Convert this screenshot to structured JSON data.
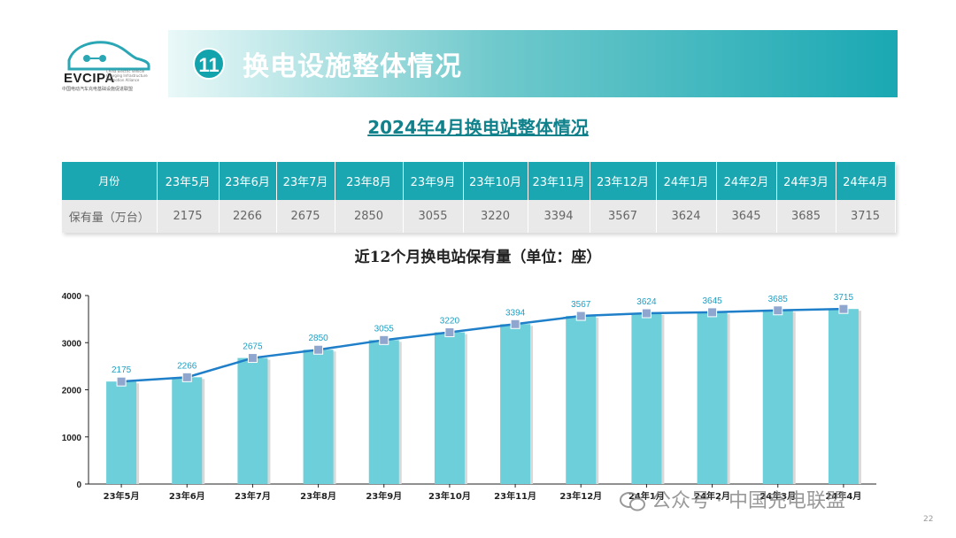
{
  "header": {
    "logo_text": "EVCIPA",
    "logo_subtext": "China Electric Vehicle Charging Infrastructure Promotion Alliance",
    "logo_cn": "中国电动汽车充电基础设施促进联盟",
    "badge_number": "11",
    "title": "换电设施整体情况"
  },
  "subtitle": "2024年4月换电站整体情况",
  "table": {
    "header_label": "月份",
    "row_label": "保有量（万台）",
    "months": [
      "23年5月",
      "23年6月",
      "23年7月",
      "23年8月",
      "23年9月",
      "23年10月",
      "23年11月",
      "23年12月",
      "24年1月",
      "24年2月",
      "24年3月",
      "24年4月"
    ],
    "values": [
      "2175",
      "2266",
      "2675",
      "2850",
      "3055",
      "3220",
      "3394",
      "3567",
      "3624",
      "3645",
      "3685",
      "3715"
    ]
  },
  "chart_title": "近12个月换电站保有量（单位：座）",
  "chart_data": {
    "type": "bar",
    "overlay": "line",
    "categories": [
      "23年5月",
      "23年6月",
      "23年7月",
      "23年8月",
      "23年9月",
      "23年10月",
      "23年11月",
      "23年12月",
      "24年1月",
      "24年2月",
      "24年3月",
      "24年4月"
    ],
    "values": [
      2175,
      2266,
      2675,
      2850,
      3055,
      3220,
      3394,
      3567,
      3624,
      3645,
      3685,
      3715
    ],
    "ylim": [
      0,
      4000
    ],
    "yticks": [
      0,
      1000,
      2000,
      3000,
      4000
    ],
    "grid": false,
    "colors": {
      "bar": "#6ccfd9",
      "line": "#1f7fc9",
      "marker": "#8fa6cf",
      "label": "#1c9fc4"
    }
  },
  "watermark": "公众号 · 中国充电联盟",
  "page_number": "22",
  "colors": {
    "accent": "#1ba7b1",
    "subtitle": "#11818c"
  }
}
